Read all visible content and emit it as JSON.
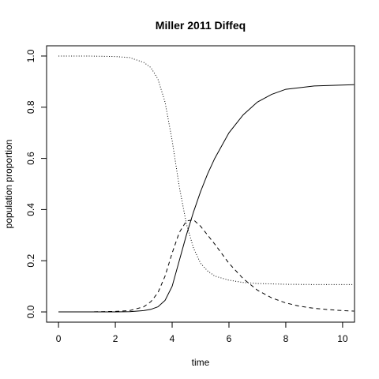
{
  "chart_data": {
    "type": "line",
    "title": "Miller 2011 Diffeq",
    "xlabel": "time",
    "ylabel": "population proportion",
    "xlim": [
      -0.42,
      10.42
    ],
    "ylim": [
      -0.04,
      1.04
    ],
    "xticks": [
      0,
      2,
      4,
      6,
      8,
      10
    ],
    "yticks": [
      0.0,
      0.2,
      0.4,
      0.6,
      0.8,
      1.0
    ],
    "ytick_labels": [
      "0.0",
      "0.2",
      "0.4",
      "0.6",
      "0.8",
      "1.0"
    ],
    "grid": false,
    "series": [
      {
        "style": "dotted",
        "x": [
          0,
          1,
          2,
          2.5,
          3,
          3.25,
          3.5,
          3.75,
          4,
          4.25,
          4.5,
          4.75,
          5,
          5.25,
          5.5,
          6,
          6.5,
          7,
          8,
          9,
          10.4
        ],
        "y": [
          1.0,
          1.0,
          0.998,
          0.994,
          0.975,
          0.955,
          0.91,
          0.82,
          0.67,
          0.49,
          0.345,
          0.25,
          0.19,
          0.16,
          0.14,
          0.124,
          0.115,
          0.111,
          0.108,
          0.107,
          0.107
        ]
      },
      {
        "style": "dashed",
        "x": [
          0,
          1,
          2,
          2.5,
          3,
          3.25,
          3.5,
          3.75,
          4,
          4.25,
          4.5,
          4.75,
          5,
          5.5,
          6,
          6.5,
          7,
          7.5,
          8,
          8.5,
          9,
          9.5,
          10,
          10.4
        ],
        "y": [
          0.0,
          0.0,
          0.002,
          0.005,
          0.02,
          0.04,
          0.075,
          0.14,
          0.23,
          0.31,
          0.355,
          0.36,
          0.335,
          0.265,
          0.19,
          0.13,
          0.085,
          0.055,
          0.035,
          0.022,
          0.014,
          0.009,
          0.005,
          0.003
        ]
      },
      {
        "style": "solid",
        "x": [
          0,
          1,
          2,
          2.5,
          3,
          3.25,
          3.5,
          3.75,
          4,
          4.25,
          4.5,
          4.75,
          5,
          5.25,
          5.5,
          6,
          6.5,
          7,
          7.5,
          8,
          9,
          10.4
        ],
        "y": [
          0.0,
          0.0,
          0.0,
          0.001,
          0.005,
          0.01,
          0.02,
          0.045,
          0.1,
          0.2,
          0.3,
          0.39,
          0.47,
          0.54,
          0.6,
          0.7,
          0.77,
          0.82,
          0.85,
          0.87,
          0.883,
          0.888
        ]
      }
    ]
  }
}
